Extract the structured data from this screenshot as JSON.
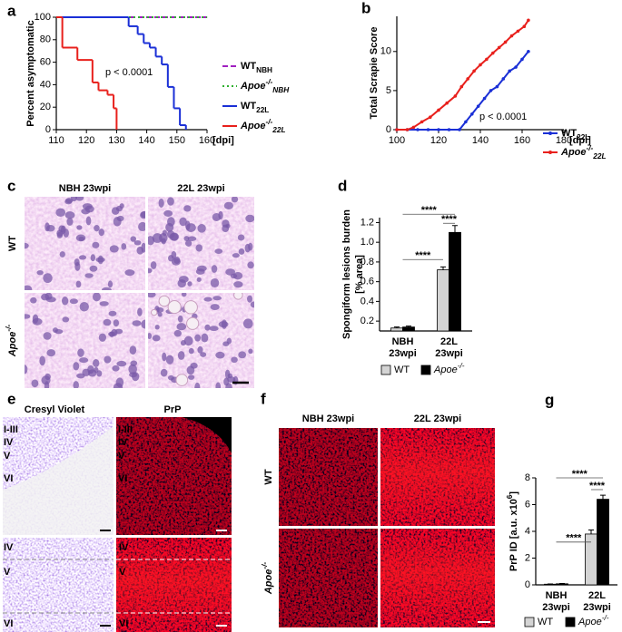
{
  "chart_data": [
    {
      "type": "step",
      "letter": "a",
      "ylabel": "Percent asymptomatic",
      "xlabel": "[dpi]",
      "xlim": [
        110,
        160
      ],
      "xticks": [
        110,
        120,
        130,
        140,
        150,
        160
      ],
      "ylim": [
        0,
        100
      ],
      "yticks": [
        0,
        20,
        40,
        60,
        80,
        100
      ],
      "annotation": "p < 0.0001",
      "legend": true,
      "series": [
        {
          "name": "WT",
          "sub": "NBH",
          "color": "#a020c0",
          "dash": "dashed",
          "x": [
            110,
            160
          ],
          "values": [
            100,
            100
          ]
        },
        {
          "name": "Apoe",
          "sup": "-/-",
          "sub": "NBH",
          "name_style": "italic",
          "color": "#30b030",
          "dash": "dotted",
          "x": [
            110,
            160
          ],
          "values": [
            100,
            100
          ]
        },
        {
          "name": "WT",
          "sub": "22L",
          "color": "#1a2fd6",
          "dash": "solid",
          "x": [
            110,
            132,
            134,
            137,
            139,
            141,
            143,
            145,
            147,
            149,
            151,
            153
          ],
          "values": [
            100,
            100,
            92,
            85,
            77,
            73,
            65,
            58,
            38,
            19,
            4,
            0
          ]
        },
        {
          "name": "Apoe",
          "sup": "-/-",
          "sub": "22L",
          "name_style": "italic",
          "color": "#e8201c",
          "dash": "solid",
          "x": [
            110,
            112,
            117,
            122,
            124,
            127,
            129,
            130
          ],
          "values": [
            100,
            73,
            62,
            42,
            35,
            31,
            19,
            0
          ]
        }
      ]
    },
    {
      "type": "line",
      "letter": "b",
      "ylabel": "Total Scrapie Score",
      "xlabel": "[dpi]",
      "xlim": [
        100,
        180
      ],
      "xticks": [
        100,
        120,
        140,
        160,
        180
      ],
      "ylim": [
        0,
        14.5
      ],
      "yticks": [
        0,
        5,
        10
      ],
      "annotation": "p < 0.0001",
      "legend": true,
      "marker": "circle",
      "series": [
        {
          "name": "WT",
          "sub": "22L",
          "color": "#1a2fd6",
          "x": [
            100,
            105,
            110,
            115,
            120,
            125,
            130,
            133,
            136,
            139,
            142,
            145,
            148,
            151,
            154,
            157,
            160,
            163
          ],
          "values": [
            0,
            0,
            0,
            0,
            0,
            0,
            0,
            1,
            2,
            3,
            4,
            5,
            5.5,
            6.5,
            7.5,
            8,
            9,
            10
          ]
        },
        {
          "name": "Apoe",
          "sup": "-/-",
          "sub": "22L",
          "name_style": "italic",
          "color": "#e8201c",
          "x": [
            100,
            105,
            108,
            112,
            116,
            120,
            124,
            128,
            131,
            134,
            137,
            140,
            143,
            146,
            149,
            152,
            155,
            158,
            161,
            163
          ],
          "values": [
            0,
            0,
            0.3,
            1,
            1.6,
            2.5,
            3.4,
            4.3,
            5.5,
            6.5,
            7.5,
            8.3,
            9,
            9.8,
            10.5,
            11.2,
            12,
            12.6,
            13.2,
            14
          ]
        }
      ]
    },
    {
      "type": "bar",
      "letter": "d",
      "ylabel": [
        "Spongiform lesions burden",
        "[% area]"
      ],
      "categories": [
        "NBH",
        "22L"
      ],
      "category_sublabels": [
        "23wpi",
        "23wpi"
      ],
      "ylim": [
        0.1,
        1.25
      ],
      "yticks": [
        0.2,
        0.4,
        0.6,
        0.8,
        {
          "value": 1,
          "label": "1.0"
        },
        1.2
      ],
      "significance": [
        "****",
        "****",
        "****"
      ],
      "legend": true,
      "series": [
        {
          "name": "WT",
          "color": "#d4d4d4",
          "values": [
            0.13,
            0.72
          ],
          "errors": [
            0.01,
            0.03
          ]
        },
        {
          "name": "Apoe",
          "sup": "-/-",
          "name_style": "italic",
          "color": "#000000",
          "values": [
            0.14,
            1.1
          ],
          "errors": [
            0.01,
            0.07
          ]
        }
      ]
    },
    {
      "type": "bar",
      "letter": "g",
      "ylabel": "PrP ID [a.u. x10",
      "ylabel_sup": "6",
      "ylabel_end": "]",
      "categories": [
        "NBH",
        "22L"
      ],
      "category_sublabels": [
        "23wpi",
        "23wpi"
      ],
      "ylim": [
        0,
        8
      ],
      "yticks": [
        0,
        2,
        4,
        6,
        8
      ],
      "significance": [
        "****",
        "****",
        "****"
      ],
      "legend": true,
      "series": [
        {
          "name": "WT",
          "color": "#d4d4d4",
          "values": [
            0.05,
            3.8
          ],
          "errors": [
            0.02,
            0.3
          ]
        },
        {
          "name": "Apoe",
          "sup": "-/-",
          "name_style": "italic",
          "color": "#000000",
          "values": [
            0.08,
            6.4
          ],
          "errors": [
            0.02,
            0.3
          ]
        }
      ]
    }
  ],
  "micrographs": [
    {
      "letter": "c",
      "columns": [
        "NBH 23wpi",
        "22L 23wpi"
      ],
      "rows": [
        {
          "name": "WT"
        },
        {
          "name": "Apoe",
          "sup": "-/-"
        }
      ]
    },
    {
      "letter": "e",
      "columns": [
        "Cresyl Violet",
        "PrP"
      ],
      "layers": [
        "I-III",
        "IV",
        "V",
        "VI"
      ],
      "zoom_layers": [
        "IV",
        "V",
        "VI"
      ]
    },
    {
      "letter": "f",
      "columns": [
        "NBH 23wpi",
        "22L 23wpi"
      ],
      "rows": [
        {
          "name": "WT"
        },
        {
          "name": "Apoe",
          "sup": "-/-"
        }
      ]
    }
  ]
}
